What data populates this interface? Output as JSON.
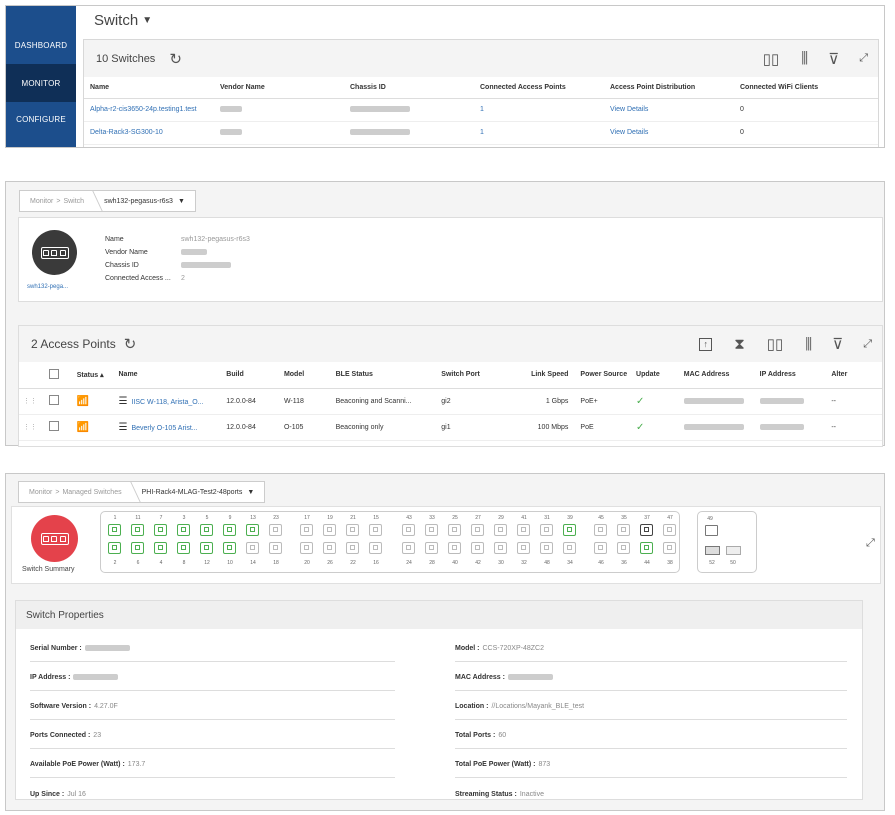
{
  "panel1": {
    "nav": [
      {
        "label": "DASHBOARD",
        "active": false
      },
      {
        "label": "MONITOR",
        "active": true
      },
      {
        "label": "CONFIGURE",
        "active": false
      }
    ],
    "title": "Switch",
    "count_label": "10 Switches",
    "columns": [
      "Name",
      "Vendor Name",
      "Chassis ID",
      "Connected Access Points",
      "Access Point Distribution",
      "Connected WiFi Clients"
    ],
    "rows": [
      {
        "name": "Alpha-r2-cis3650-24p.testing1.test",
        "ap": "1",
        "dist": "View Details",
        "clients": "0"
      },
      {
        "name": "Delta-Rack3-SG300-10",
        "ap": "1",
        "dist": "View Details",
        "clients": "0"
      }
    ]
  },
  "panel2": {
    "breadcrumb_root": "Monitor",
    "breadcrumb_sep": ">",
    "breadcrumb_parent": "Switch",
    "breadcrumb_current": "swh132-pegasus-r6s3",
    "avatar_caption": "swh132-pega...",
    "props": [
      {
        "k": "Name",
        "v": "swh132-pegasus-r6s3"
      },
      {
        "k": "Vendor Name",
        "v": ""
      },
      {
        "k": "Chassis ID",
        "v": ""
      },
      {
        "k": "Connected Access ...",
        "v": "2"
      }
    ],
    "ap_title": "2 Access Points",
    "columns": [
      "Status",
      "Name",
      "Build",
      "Model",
      "BLE Status",
      "Switch Port",
      "Link Speed",
      "Power Source",
      "Update",
      "MAC Address",
      "IP Address",
      "Alter"
    ],
    "rows": [
      {
        "name": "IISC W-118, Arista_O...",
        "build": "12.0.0-84",
        "model": "W-118",
        "ble": "Beaconing and Scanni...",
        "port": "gi2",
        "speed": "1 Gbps",
        "power": "PoE+",
        "alt": "--"
      },
      {
        "name": "Beverly O-105 Arist...",
        "build": "12.0.0-84",
        "model": "O-105",
        "ble": "Beaconing only",
        "port": "gi1",
        "speed": "100 Mbps",
        "power": "PoE",
        "alt": "--"
      }
    ]
  },
  "panel3": {
    "breadcrumb_root": "Monitor",
    "breadcrumb_sep": ">",
    "breadcrumb_parent": "Managed Switches",
    "breadcrumb_current": "PHI-Rack4-MLAG-Test2-48ports",
    "summary_label": "Switch Summary",
    "top_ports": [
      "1",
      "11",
      "7",
      "3",
      "5",
      "9",
      "13",
      "23",
      "17",
      "19",
      "21",
      "15",
      "43",
      "33",
      "25",
      "27",
      "29",
      "41",
      "31",
      "39",
      "45",
      "35",
      "37",
      "47"
    ],
    "bottom_ports": [
      "2",
      "6",
      "4",
      "8",
      "12",
      "10",
      "14",
      "18",
      "20",
      "26",
      "22",
      "16",
      "24",
      "28",
      "40",
      "42",
      "30",
      "32",
      "48",
      "34",
      "46",
      "36",
      "44",
      "38"
    ],
    "sfp_top": "49",
    "sfp_bottom": [
      "52",
      "50"
    ],
    "properties_title": "Switch Properties",
    "left_props": [
      {
        "label": "Serial Number :",
        "value": ""
      },
      {
        "label": "IP Address :",
        "value": ""
      },
      {
        "label": "Software Version :",
        "value": "4.27.0F"
      },
      {
        "label": "Ports Connected :",
        "value": "23"
      },
      {
        "label": "Available PoE Power (Watt) :",
        "value": "173.7"
      },
      {
        "label": "Up Since :",
        "value": "Jul 16"
      }
    ],
    "right_props": [
      {
        "label": "Model :",
        "value": "CCS-720XP-48ZC2"
      },
      {
        "label": "MAC Address :",
        "value": ""
      },
      {
        "label": "Location :",
        "value": "//Locations/Mayank_BLE_test"
      },
      {
        "label": "Total Ports :",
        "value": "60"
      },
      {
        "label": "Total PoE Power (Watt) :",
        "value": "873"
      },
      {
        "label": "Streaming Status :",
        "value": "Inactive"
      }
    ]
  },
  "colors": {
    "nav": "#1c4e8c",
    "nav_active": "#0f2f57",
    "link": "#2f6fb4",
    "port_active": "#4caf50",
    "summary_avatar": "#e4424b"
  }
}
